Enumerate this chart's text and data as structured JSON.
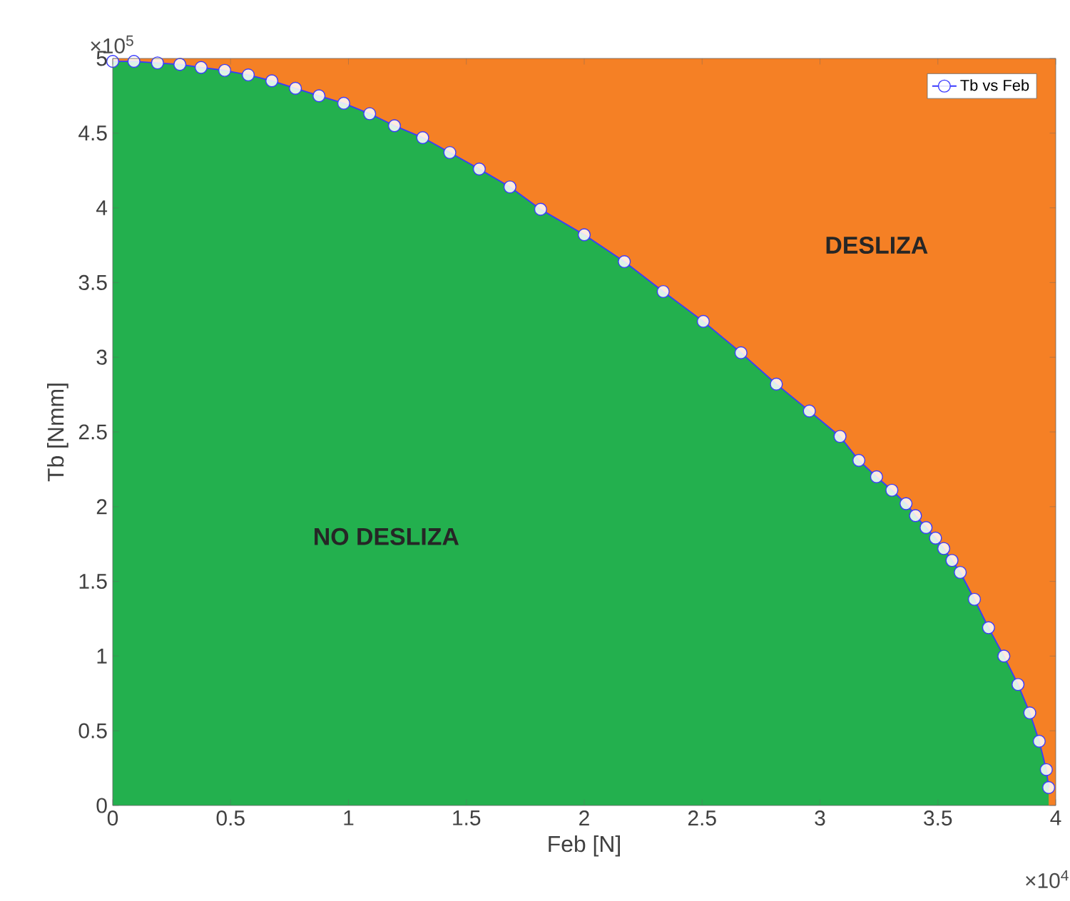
{
  "chart_data": {
    "type": "line",
    "xlabel": "Feb [N]",
    "ylabel": "Tb [Nmm]",
    "x": [
      0,
      0.09,
      0.19,
      0.285,
      0.375,
      0.475,
      0.575,
      0.675,
      0.775,
      0.875,
      0.98,
      1.09,
      1.195,
      1.315,
      1.43,
      1.555,
      1.685,
      1.815,
      2.0,
      2.17,
      2.335,
      2.505,
      2.665,
      2.815,
      2.955,
      3.085,
      3.165,
      3.24,
      3.305,
      3.365,
      3.405,
      3.45,
      3.49,
      3.525,
      3.56,
      3.595,
      3.655,
      3.715,
      3.78,
      3.84,
      3.89,
      3.93,
      3.96,
      3.97
    ],
    "series": [
      {
        "type": "area",
        "color": "#23b04e",
        "values": [
          4.98,
          4.98,
          4.97,
          4.96,
          4.94,
          4.92,
          4.89,
          4.85,
          4.8,
          4.75,
          4.7,
          4.63,
          4.55,
          4.47,
          4.37,
          4.26,
          4.14,
          3.99,
          3.82,
          3.64,
          3.44,
          3.24,
          3.03,
          2.82,
          2.64,
          2.47,
          2.31,
          2.2,
          2.11,
          2.02,
          1.94,
          1.86,
          1.79,
          1.72,
          1.64,
          1.56,
          1.38,
          1.19,
          1.0,
          0.81,
          0.62,
          0.43,
          0.24,
          0.12
        ]
      },
      {
        "name": "Tb vs Feb",
        "color": "#3a3aff",
        "marker": "circle",
        "line_style": "solid",
        "values": [
          4.98,
          4.98,
          4.97,
          4.96,
          4.94,
          4.92,
          4.89,
          4.85,
          4.8,
          4.75,
          4.7,
          4.63,
          4.55,
          4.47,
          4.37,
          4.26,
          4.14,
          3.99,
          3.82,
          3.64,
          3.44,
          3.24,
          3.03,
          2.82,
          2.64,
          2.47,
          2.31,
          2.2,
          2.11,
          2.02,
          1.94,
          1.86,
          1.79,
          1.72,
          1.64,
          1.56,
          1.38,
          1.19,
          1.0,
          0.81,
          0.62,
          0.43,
          0.24,
          0.12
        ]
      }
    ],
    "bands": [
      {
        "axis": "x",
        "from": 0,
        "to": 4,
        "color": "#f58025",
        "label": "DESLIZA"
      }
    ],
    "annotations": [
      "NO DESLIZA",
      "×10$^{5}$",
      "×10$^{4}$"
    ],
    "xlim": [
      0,
      4
    ],
    "ylim": [
      0,
      5
    ],
    "xticks": [
      0,
      0.5,
      1,
      1.5,
      2,
      2.5,
      3,
      3.5,
      4
    ],
    "yticks": [
      0,
      0.5,
      1,
      1.5,
      2,
      2.5,
      3,
      3.5,
      4,
      4.5,
      5
    ],
    "grid": false,
    "legend": "top right"
  }
}
